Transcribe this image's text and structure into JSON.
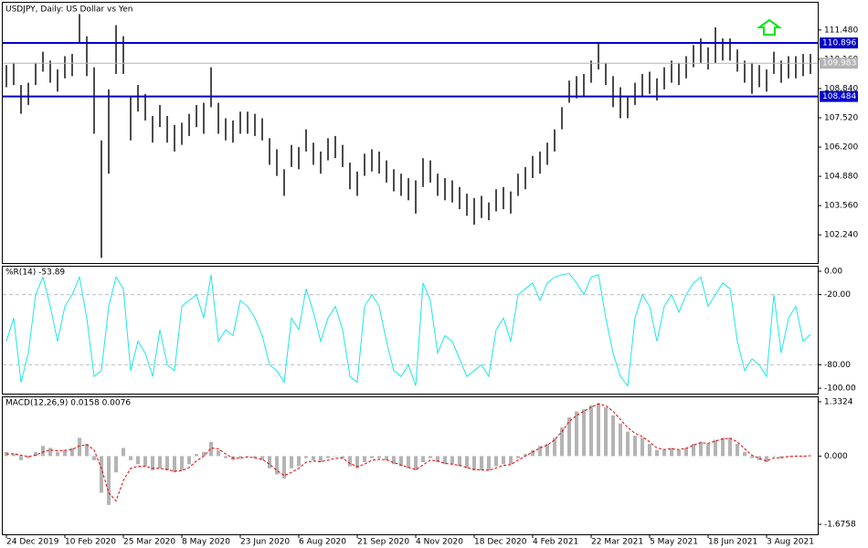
{
  "chart_data": [
    {
      "type": "ohlc",
      "title": "USDJPY, Daily:  US Dollar vs Yen",
      "color": "#000000",
      "xlim": [
        -0.5,
        111
      ],
      "ylim": [
        100.97,
        112.71
      ],
      "yticks": [
        {
          "value": 111.48,
          "label": "111.480"
        },
        {
          "value": 110.16,
          "label": "110.160"
        },
        {
          "value": 108.84,
          "label": "108.840"
        },
        {
          "value": 107.52,
          "label": "107.520"
        },
        {
          "value": 106.2,
          "label": "106.200"
        },
        {
          "value": 104.88,
          "label": "104.880"
        },
        {
          "value": 103.56,
          "label": "103.560"
        },
        {
          "value": 102.24,
          "label": "102.240"
        }
      ],
      "levels": [
        {
          "value": 110.896,
          "color": "#0000c8"
        },
        {
          "value": 108.484,
          "color": "#0000c8"
        },
        {
          "value": 109.983,
          "color": "#b4b4b4"
        }
      ],
      "high": [
        109.9,
        110.0,
        109.0,
        109.1,
        110.0,
        110.5,
        110.1,
        109.7,
        110.3,
        110.4,
        112.2,
        111.2,
        109.8,
        106.5,
        108.8,
        111.7,
        111.2,
        108.5,
        109.0,
        108.6,
        107.6,
        108.1,
        107.6,
        107.2,
        107.3,
        107.7,
        108.1,
        108.2,
        109.8,
        108.2,
        107.5,
        107.4,
        107.8,
        107.8,
        107.7,
        107.5,
        106.6,
        106.1,
        105.2,
        106.3,
        106.2,
        107.0,
        106.4,
        106.0,
        106.6,
        106.7,
        106.3,
        105.5,
        105.1,
        105.9,
        106.1,
        106.0,
        105.6,
        105.2,
        105.0,
        104.8,
        104.7,
        105.7,
        105.6,
        105.0,
        104.8,
        104.7,
        104.4,
        104.1,
        103.9,
        104.0,
        103.7,
        104.3,
        104.4,
        104.2,
        105.0,
        105.3,
        105.8,
        106.0,
        106.4,
        107.0,
        108.0,
        109.2,
        109.4,
        109.5,
        110.1,
        110.9,
        110.0,
        109.4,
        108.9,
        108.5,
        109.1,
        109.5,
        109.6,
        109.3,
        109.8,
        110.1,
        110.0,
        110.3,
        110.8,
        111.1,
        110.7,
        111.6,
        111.1,
        111.1,
        110.6,
        110.1,
        110.0,
        109.9,
        109.7,
        110.5,
        110.1,
        110.3,
        110.3,
        110.4,
        110.4
      ],
      "low": [
        108.9,
        109.0,
        107.7,
        108.1,
        109.0,
        109.6,
        109.1,
        108.7,
        109.3,
        109.4,
        110.9,
        109.4,
        106.8,
        101.2,
        105.0,
        109.5,
        109.5,
        106.5,
        107.8,
        107.4,
        106.4,
        107.1,
        106.4,
        106.0,
        106.3,
        106.7,
        107.1,
        106.8,
        108.0,
        106.8,
        106.5,
        106.4,
        106.8,
        106.8,
        106.7,
        106.5,
        105.4,
        104.9,
        104.0,
        105.3,
        105.2,
        106.0,
        105.4,
        105.0,
        105.6,
        105.7,
        105.3,
        104.3,
        104.0,
        104.9,
        105.1,
        105.0,
        104.6,
        104.2,
        104.0,
        103.8,
        103.2,
        104.4,
        104.6,
        104.0,
        103.8,
        103.7,
        103.4,
        103.1,
        102.7,
        103.0,
        102.9,
        103.3,
        103.4,
        103.2,
        104.0,
        104.3,
        104.8,
        105.0,
        105.4,
        106.0,
        107.0,
        108.2,
        108.4,
        108.5,
        109.1,
        109.7,
        109.0,
        108.0,
        107.5,
        107.5,
        108.1,
        108.5,
        108.6,
        108.3,
        108.8,
        109.1,
        109.0,
        109.3,
        109.8,
        110.0,
        109.7,
        110.0,
        110.1,
        110.1,
        109.6,
        109.1,
        108.6,
        108.9,
        108.7,
        109.5,
        109.1,
        109.3,
        109.3,
        109.4,
        109.5
      ]
    },
    {
      "type": "line",
      "title": "%R(14) -53.89",
      "color": "#1ee6e6",
      "xlim": [
        -0.5,
        111
      ],
      "ylim": [
        -104.65,
        3.88
      ],
      "yticks": [
        {
          "value": 0,
          "label": "0.00"
        },
        {
          "value": -20,
          "label": "-20.00"
        },
        {
          "value": -80,
          "label": "-80.00"
        },
        {
          "value": -100,
          "label": "-100.00"
        }
      ],
      "values": [
        -60,
        -40,
        -95,
        -70,
        -20,
        -5,
        -30,
        -60,
        -30,
        -20,
        -5,
        -40,
        -90,
        -85,
        -30,
        -5,
        -15,
        -85,
        -60,
        -70,
        -90,
        -50,
        -80,
        -85,
        -30,
        -25,
        -20,
        -40,
        -3,
        -60,
        -50,
        -55,
        -25,
        -30,
        -40,
        -55,
        -80,
        -85,
        -95,
        -40,
        -50,
        -15,
        -35,
        -60,
        -40,
        -30,
        -50,
        -90,
        -95,
        -30,
        -20,
        -30,
        -60,
        -85,
        -90,
        -80,
        -98,
        -10,
        -25,
        -70,
        -55,
        -60,
        -75,
        -90,
        -85,
        -80,
        -90,
        -50,
        -40,
        -60,
        -20,
        -15,
        -10,
        -25,
        -10,
        -5,
        -3,
        -2,
        -10,
        -20,
        -5,
        -3,
        -40,
        -70,
        -90,
        -98,
        -40,
        -20,
        -30,
        -60,
        -30,
        -20,
        -35,
        -20,
        -10,
        -5,
        -30,
        -20,
        -10,
        -15,
        -60,
        -85,
        -75,
        -80,
        -90,
        -20,
        -70,
        -40,
        -30,
        -60,
        -53.89
      ]
    },
    {
      "type": "macd",
      "title": "MACD(12,26,9) 0.0158 0.0076",
      "color": "#b4b4b4",
      "signal_color": "#e60000",
      "xlim": [
        -0.5,
        111
      ],
      "ylim": [
        -1.921,
        1.444
      ],
      "yticks": [
        {
          "value": 1.3324,
          "label": "1.3324"
        },
        {
          "value": 0,
          "label": "0.000"
        },
        {
          "value": -1.6758,
          "label": "-1.6758"
        }
      ],
      "xticks": [
        {
          "value": 0,
          "label": "24 Dec 2019"
        },
        {
          "value": 8,
          "label": "10 Feb 2020"
        },
        {
          "value": 16,
          "label": "25 Mar 2020"
        },
        {
          "value": 24,
          "label": "8 May 2020"
        },
        {
          "value": 32,
          "label": "23 Jun 2020"
        },
        {
          "value": 40,
          "label": "6 Aug 2020"
        },
        {
          "value": 48,
          "label": "21 Sep 2020"
        },
        {
          "value": 56,
          "label": "4 Nov 2020"
        },
        {
          "value": 64,
          "label": "18 Dec 2020"
        },
        {
          "value": 72,
          "label": "4 Feb 2021"
        },
        {
          "value": 80,
          "label": "22 Mar 2021"
        },
        {
          "value": 88,
          "label": "5 May 2021"
        },
        {
          "value": 96,
          "label": "18 Jun 2021"
        },
        {
          "value": 104,
          "label": "3 Aug 2021"
        }
      ],
      "values": [
        0.1,
        0.05,
        -0.1,
        -0.05,
        0.1,
        0.25,
        0.2,
        0.1,
        0.15,
        0.2,
        0.45,
        0.3,
        -0.1,
        -0.9,
        -1.2,
        -0.4,
        0.2,
        -0.1,
        -0.2,
        -0.25,
        -0.35,
        -0.3,
        -0.35,
        -0.4,
        -0.35,
        -0.2,
        0.05,
        0.1,
        0.35,
        0.15,
        -0.05,
        -0.1,
        -0.05,
        0.0,
        -0.05,
        -0.1,
        -0.3,
        -0.45,
        -0.55,
        -0.3,
        -0.25,
        -0.05,
        -0.1,
        -0.15,
        -0.05,
        0.0,
        -0.05,
        -0.25,
        -0.3,
        -0.15,
        -0.05,
        -0.05,
        -0.1,
        -0.2,
        -0.25,
        -0.3,
        -0.35,
        -0.15,
        -0.05,
        -0.15,
        -0.2,
        -0.2,
        -0.25,
        -0.3,
        -0.35,
        -0.35,
        -0.35,
        -0.25,
        -0.2,
        -0.2,
        -0.05,
        0.05,
        0.15,
        0.25,
        0.3,
        0.45,
        0.7,
        0.95,
        1.1,
        1.15,
        1.25,
        1.3,
        1.2,
        1.0,
        0.8,
        0.6,
        0.5,
        0.45,
        0.3,
        0.15,
        0.15,
        0.2,
        0.15,
        0.2,
        0.3,
        0.35,
        0.3,
        0.4,
        0.45,
        0.45,
        0.3,
        0.1,
        -0.05,
        -0.1,
        -0.15,
        0.0,
        -0.05,
        0.0,
        0.0,
        0.0,
        0.0158
      ],
      "signal": [
        0.05,
        0.06,
        0.02,
        -0.01,
        0.02,
        0.1,
        0.15,
        0.13,
        0.14,
        0.16,
        0.25,
        0.28,
        0.15,
        -0.3,
        -0.9,
        -1.1,
        -0.6,
        -0.3,
        -0.25,
        -0.25,
        -0.3,
        -0.3,
        -0.33,
        -0.37,
        -0.36,
        -0.28,
        -0.12,
        0.0,
        0.2,
        0.18,
        0.05,
        -0.05,
        -0.05,
        -0.02,
        -0.04,
        -0.08,
        -0.2,
        -0.35,
        -0.48,
        -0.4,
        -0.3,
        -0.15,
        -0.12,
        -0.14,
        -0.1,
        -0.05,
        -0.05,
        -0.18,
        -0.26,
        -0.2,
        -0.1,
        -0.08,
        -0.09,
        -0.16,
        -0.22,
        -0.28,
        -0.33,
        -0.22,
        -0.1,
        -0.12,
        -0.18,
        -0.2,
        -0.23,
        -0.28,
        -0.33,
        -0.34,
        -0.35,
        -0.29,
        -0.23,
        -0.21,
        -0.1,
        0.0,
        0.1,
        0.2,
        0.27,
        0.4,
        0.6,
        0.85,
        1.0,
        1.1,
        1.2,
        1.28,
        1.24,
        1.1,
        0.9,
        0.7,
        0.56,
        0.48,
        0.35,
        0.2,
        0.16,
        0.18,
        0.16,
        0.19,
        0.27,
        0.33,
        0.31,
        0.37,
        0.42,
        0.44,
        0.35,
        0.18,
        0.02,
        -0.06,
        -0.12,
        -0.04,
        -0.04,
        -0.01,
        0.0,
        0.0,
        0.0076
      ]
    }
  ]
}
